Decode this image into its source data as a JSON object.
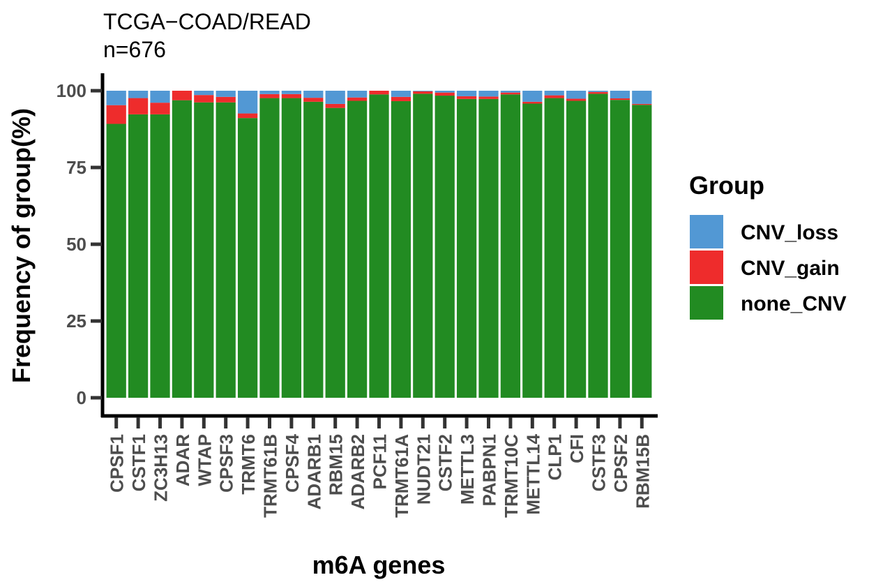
{
  "chart_data": {
    "type": "bar",
    "stacked": true,
    "title": "TCGA−COAD/READ",
    "subtitle": "n=676",
    "xlabel": "m6A genes",
    "ylabel": "Frequency of group(%)",
    "ylim": [
      0,
      100
    ],
    "yticks": [
      "0",
      "25",
      "50",
      "75",
      "100"
    ],
    "grid": false,
    "legend_position": "right",
    "legend_title": "Group",
    "categories": [
      "CPSF1",
      "CSTF1",
      "ZC3H13",
      "ADAR",
      "WTAP",
      "CPSF3",
      "TRMT6",
      "TRMT61B",
      "CPSF4",
      "ADARB1",
      "RBM15",
      "ADARB2",
      "PCF11",
      "TRMT61A",
      "NUDT21",
      "CSTF2",
      "METTL3",
      "PABPN1",
      "TRMT10C",
      "METTL14",
      "CLP1",
      "CFI",
      "CSTF3",
      "CPSF2",
      "RBM15B"
    ],
    "series": [
      {
        "name": "none_CNV",
        "color": "#228B22",
        "values": [
          89.2,
          92.3,
          92.3,
          96.9,
          96.2,
          96.2,
          91.1,
          97.6,
          97.6,
          96.4,
          94.4,
          96.7,
          98.8,
          96.6,
          99.0,
          98.4,
          97.3,
          97.3,
          98.8,
          95.8,
          97.6,
          96.7,
          99.0,
          97.0,
          95.4
        ]
      },
      {
        "name": "CNV_gain",
        "color": "#EE2C2C",
        "values": [
          6.1,
          5.3,
          3.8,
          3.1,
          2.4,
          1.8,
          1.5,
          1.3,
          1.3,
          1.3,
          1.3,
          1.1,
          1.2,
          1.4,
          0.8,
          1.0,
          0.9,
          0.8,
          0.6,
          0.6,
          0.9,
          0.7,
          0.6,
          0.5,
          0.3
        ]
      },
      {
        "name": "CNV_loss",
        "color": "#5298D4",
        "values": [
          4.7,
          2.4,
          3.9,
          0.0,
          1.4,
          2.0,
          7.4,
          1.1,
          1.1,
          2.3,
          4.3,
          2.2,
          0.0,
          2.0,
          0.2,
          0.6,
          1.8,
          1.9,
          0.6,
          3.6,
          1.5,
          2.6,
          0.4,
          2.5,
          4.3
        ]
      }
    ],
    "legend_order": [
      "CNV_loss",
      "CNV_gain",
      "none_CNV"
    ]
  }
}
